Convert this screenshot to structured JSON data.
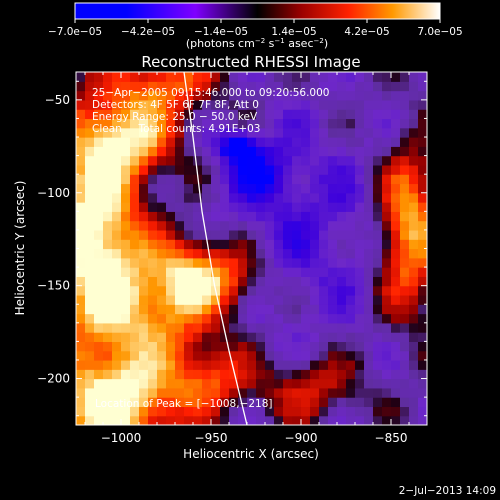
{
  "chart_data": {
    "type": "heatmap",
    "title": "Reconstructed RHESSI Image",
    "xlabel": "Heliocentric X (arcsec)",
    "ylabel": "Heliocentric Y (arcsec)",
    "xlim": [
      -1025,
      -830
    ],
    "ylim": [
      -225,
      -35
    ],
    "x_ticks": [
      -1000,
      -950,
      -900,
      -850
    ],
    "y_ticks": [
      -50,
      -100,
      -150,
      -200
    ],
    "x_tick_labels": [
      "−1000",
      "−950",
      "−900",
      "−850"
    ],
    "y_tick_labels": [
      "−50",
      "−100",
      "−150",
      "−200"
    ],
    "colorbar": {
      "min": -7e-05,
      "max": 7e-05,
      "tick_labels": [
        "−7.0e−05",
        "−4.2e−05",
        "−1.4e−05",
        "1.4e−05",
        "4.2e−05",
        "7.0e−05"
      ],
      "tick_values": [
        -7e-05,
        -4.2e-05,
        -1.4e-05,
        1.4e-05,
        4.2e-05,
        7e-05
      ],
      "units_prefix": "(photons cm",
      "units_exp1": "−2",
      "units_mid": " s",
      "units_exp2": "−1",
      "units_suffix": " asec",
      "units_exp3": "−2",
      "units_close": ")"
    },
    "annotations": [
      "25−Apr−2005 09:15:46.000 to 09:20:56.000",
      "Detectors: 4F 5F 6F 7F 8F, Att 0",
      "Energy Range: 25.0 − 50.0 keV",
      "Clean     Total counts: 4.91E+03"
    ],
    "peak_label": "Location of Peak = [−1008,−218]",
    "peak": [
      -1008,
      -218
    ],
    "limb": [
      [
        -965,
        -35
      ],
      [
        -960,
        -70
      ],
      [
        -955,
        -110
      ],
      [
        -948,
        -150
      ],
      [
        -940,
        -185
      ],
      [
        -930,
        -225
      ]
    ],
    "blobs": [
      {
        "x": -1015,
        "y": -120,
        "sx": 18,
        "sy": 40,
        "a": 1.3
      },
      {
        "x": -1005,
        "y": -215,
        "sx": 25,
        "sy": 18,
        "a": 1.25
      },
      {
        "x": -995,
        "y": -70,
        "sx": 20,
        "sy": 15,
        "a": 0.9
      },
      {
        "x": -985,
        "y": -165,
        "sx": 25,
        "sy": 25,
        "a": 0.8
      },
      {
        "x": -960,
        "y": -145,
        "sx": 15,
        "sy": 15,
        "a": 0.9
      },
      {
        "x": -975,
        "y": -40,
        "sx": 20,
        "sy": 12,
        "a": 0.7
      },
      {
        "x": -950,
        "y": -200,
        "sx": 15,
        "sy": 12,
        "a": 0.6
      },
      {
        "x": -840,
        "y": -120,
        "sx": 12,
        "sy": 30,
        "a": 1.1
      },
      {
        "x": -935,
        "y": -145,
        "sx": 14,
        "sy": 12,
        "a": 0.5
      },
      {
        "x": -895,
        "y": -205,
        "sx": 20,
        "sy": 12,
        "a": 0.5
      },
      {
        "x": -935,
        "y": -75,
        "sx": 8,
        "sy": 6,
        "a": -0.9
      },
      {
        "x": -900,
        "y": -120,
        "sx": 40,
        "sy": 40,
        "a": -0.35
      },
      {
        "x": -920,
        "y": -90,
        "sx": 12,
        "sy": 10,
        "a": -0.5
      }
    ]
  },
  "footer": {
    "date": "2−Jul−2013 14:09"
  }
}
